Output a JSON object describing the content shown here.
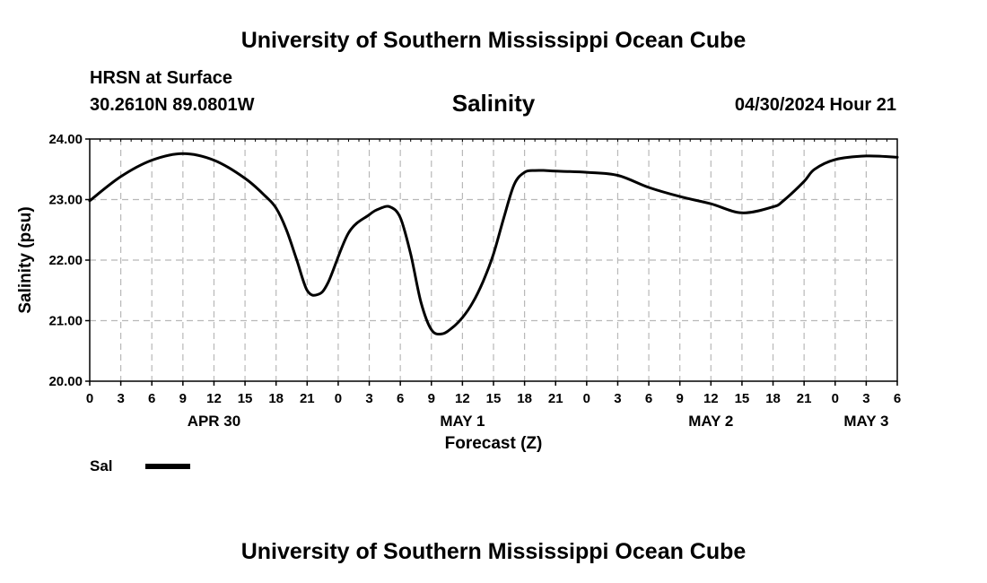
{
  "page": {
    "top_title": "University of Southern Mississippi Ocean Cube",
    "bottom_title": "University of Southern Mississippi Ocean Cube",
    "station": "HRSN at Surface",
    "coords": "30.2610N  89.0801W",
    "chart_title": "Salinity",
    "datetime": "04/30/2024 Hour 21"
  },
  "legend": {
    "label": "Sal"
  },
  "chart_data": {
    "type": "line",
    "title": "Salinity",
    "xlabel": "Forecast (Z)",
    "ylabel": "Salinity (psu)",
    "ylim": [
      20,
      24
    ],
    "y_ticks": [
      "20.00",
      "21.00",
      "22.00",
      "23.00",
      "24.00"
    ],
    "x_range_hours": [
      0,
      78
    ],
    "x_tick_step_hours": 3,
    "x_tick_labels": [
      "0",
      "3",
      "6",
      "9",
      "12",
      "15",
      "18",
      "21",
      "0",
      "3",
      "6",
      "9",
      "12",
      "15",
      "18",
      "21",
      "0",
      "3",
      "6",
      "9",
      "12",
      "15",
      "18",
      "21",
      "0",
      "3",
      "6"
    ],
    "day_labels": [
      {
        "hour": 12,
        "text": "APR 30"
      },
      {
        "hour": 36,
        "text": "MAY 1"
      },
      {
        "hour": 60,
        "text": "MAY 2"
      },
      {
        "hour": 75,
        "text": "MAY 3"
      }
    ],
    "grid": true,
    "series": [
      {
        "name": "Sal",
        "color": "#000000",
        "x": [
          0,
          3,
          6,
          9,
          12,
          15,
          17,
          18,
          19,
          20,
          21,
          22,
          23,
          25,
          27,
          28,
          29,
          30,
          31,
          32,
          33,
          34,
          35,
          36,
          37,
          38,
          39,
          40,
          41,
          42,
          43,
          44,
          45,
          48,
          51,
          54,
          57,
          60,
          63,
          66,
          67,
          69,
          70,
          72,
          75,
          78
        ],
        "values": [
          22.98,
          23.38,
          23.65,
          23.76,
          23.65,
          23.35,
          23.05,
          22.86,
          22.5,
          22.0,
          21.5,
          21.43,
          21.62,
          22.45,
          22.75,
          22.85,
          22.88,
          22.7,
          22.1,
          21.3,
          20.85,
          20.78,
          20.88,
          21.05,
          21.3,
          21.65,
          22.1,
          22.7,
          23.25,
          23.45,
          23.48,
          23.48,
          23.47,
          23.45,
          23.4,
          23.2,
          23.05,
          22.93,
          22.78,
          22.88,
          22.98,
          23.3,
          23.5,
          23.66,
          23.72,
          23.7
        ]
      }
    ]
  }
}
